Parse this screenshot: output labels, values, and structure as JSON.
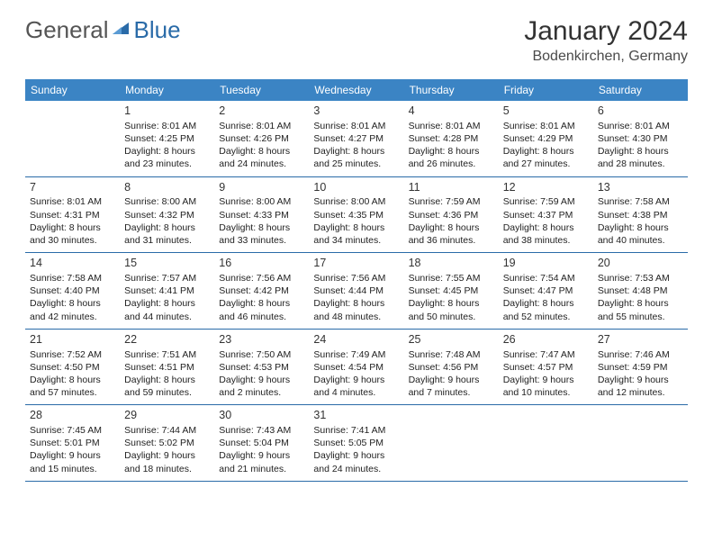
{
  "logo": {
    "text1": "General",
    "text2": "Blue",
    "color_text": "#555555",
    "color_icon": "#2a6ba8"
  },
  "header": {
    "month_title": "January 2024",
    "location": "Bodenkirchen, Germany",
    "title_fontsize": 30,
    "location_fontsize": 16
  },
  "calendar": {
    "header_bg": "#3b84c4",
    "header_fg": "#ffffff",
    "border_color": "#2a6ba8",
    "cell_fontsize": 10.5,
    "days": [
      "Sunday",
      "Monday",
      "Tuesday",
      "Wednesday",
      "Thursday",
      "Friday",
      "Saturday"
    ],
    "weeks": [
      [
        {
          "n": "",
          "s": "",
          "t": "",
          "d": ""
        },
        {
          "n": "1",
          "s": "Sunrise: 8:01 AM",
          "t": "Sunset: 4:25 PM",
          "d": "Daylight: 8 hours and 23 minutes."
        },
        {
          "n": "2",
          "s": "Sunrise: 8:01 AM",
          "t": "Sunset: 4:26 PM",
          "d": "Daylight: 8 hours and 24 minutes."
        },
        {
          "n": "3",
          "s": "Sunrise: 8:01 AM",
          "t": "Sunset: 4:27 PM",
          "d": "Daylight: 8 hours and 25 minutes."
        },
        {
          "n": "4",
          "s": "Sunrise: 8:01 AM",
          "t": "Sunset: 4:28 PM",
          "d": "Daylight: 8 hours and 26 minutes."
        },
        {
          "n": "5",
          "s": "Sunrise: 8:01 AM",
          "t": "Sunset: 4:29 PM",
          "d": "Daylight: 8 hours and 27 minutes."
        },
        {
          "n": "6",
          "s": "Sunrise: 8:01 AM",
          "t": "Sunset: 4:30 PM",
          "d": "Daylight: 8 hours and 28 minutes."
        }
      ],
      [
        {
          "n": "7",
          "s": "Sunrise: 8:01 AM",
          "t": "Sunset: 4:31 PM",
          "d": "Daylight: 8 hours and 30 minutes."
        },
        {
          "n": "8",
          "s": "Sunrise: 8:00 AM",
          "t": "Sunset: 4:32 PM",
          "d": "Daylight: 8 hours and 31 minutes."
        },
        {
          "n": "9",
          "s": "Sunrise: 8:00 AM",
          "t": "Sunset: 4:33 PM",
          "d": "Daylight: 8 hours and 33 minutes."
        },
        {
          "n": "10",
          "s": "Sunrise: 8:00 AM",
          "t": "Sunset: 4:35 PM",
          "d": "Daylight: 8 hours and 34 minutes."
        },
        {
          "n": "11",
          "s": "Sunrise: 7:59 AM",
          "t": "Sunset: 4:36 PM",
          "d": "Daylight: 8 hours and 36 minutes."
        },
        {
          "n": "12",
          "s": "Sunrise: 7:59 AM",
          "t": "Sunset: 4:37 PM",
          "d": "Daylight: 8 hours and 38 minutes."
        },
        {
          "n": "13",
          "s": "Sunrise: 7:58 AM",
          "t": "Sunset: 4:38 PM",
          "d": "Daylight: 8 hours and 40 minutes."
        }
      ],
      [
        {
          "n": "14",
          "s": "Sunrise: 7:58 AM",
          "t": "Sunset: 4:40 PM",
          "d": "Daylight: 8 hours and 42 minutes."
        },
        {
          "n": "15",
          "s": "Sunrise: 7:57 AM",
          "t": "Sunset: 4:41 PM",
          "d": "Daylight: 8 hours and 44 minutes."
        },
        {
          "n": "16",
          "s": "Sunrise: 7:56 AM",
          "t": "Sunset: 4:42 PM",
          "d": "Daylight: 8 hours and 46 minutes."
        },
        {
          "n": "17",
          "s": "Sunrise: 7:56 AM",
          "t": "Sunset: 4:44 PM",
          "d": "Daylight: 8 hours and 48 minutes."
        },
        {
          "n": "18",
          "s": "Sunrise: 7:55 AM",
          "t": "Sunset: 4:45 PM",
          "d": "Daylight: 8 hours and 50 minutes."
        },
        {
          "n": "19",
          "s": "Sunrise: 7:54 AM",
          "t": "Sunset: 4:47 PM",
          "d": "Daylight: 8 hours and 52 minutes."
        },
        {
          "n": "20",
          "s": "Sunrise: 7:53 AM",
          "t": "Sunset: 4:48 PM",
          "d": "Daylight: 8 hours and 55 minutes."
        }
      ],
      [
        {
          "n": "21",
          "s": "Sunrise: 7:52 AM",
          "t": "Sunset: 4:50 PM",
          "d": "Daylight: 8 hours and 57 minutes."
        },
        {
          "n": "22",
          "s": "Sunrise: 7:51 AM",
          "t": "Sunset: 4:51 PM",
          "d": "Daylight: 8 hours and 59 minutes."
        },
        {
          "n": "23",
          "s": "Sunrise: 7:50 AM",
          "t": "Sunset: 4:53 PM",
          "d": "Daylight: 9 hours and 2 minutes."
        },
        {
          "n": "24",
          "s": "Sunrise: 7:49 AM",
          "t": "Sunset: 4:54 PM",
          "d": "Daylight: 9 hours and 4 minutes."
        },
        {
          "n": "25",
          "s": "Sunrise: 7:48 AM",
          "t": "Sunset: 4:56 PM",
          "d": "Daylight: 9 hours and 7 minutes."
        },
        {
          "n": "26",
          "s": "Sunrise: 7:47 AM",
          "t": "Sunset: 4:57 PM",
          "d": "Daylight: 9 hours and 10 minutes."
        },
        {
          "n": "27",
          "s": "Sunrise: 7:46 AM",
          "t": "Sunset: 4:59 PM",
          "d": "Daylight: 9 hours and 12 minutes."
        }
      ],
      [
        {
          "n": "28",
          "s": "Sunrise: 7:45 AM",
          "t": "Sunset: 5:01 PM",
          "d": "Daylight: 9 hours and 15 minutes."
        },
        {
          "n": "29",
          "s": "Sunrise: 7:44 AM",
          "t": "Sunset: 5:02 PM",
          "d": "Daylight: 9 hours and 18 minutes."
        },
        {
          "n": "30",
          "s": "Sunrise: 7:43 AM",
          "t": "Sunset: 5:04 PM",
          "d": "Daylight: 9 hours and 21 minutes."
        },
        {
          "n": "31",
          "s": "Sunrise: 7:41 AM",
          "t": "Sunset: 5:05 PM",
          "d": "Daylight: 9 hours and 24 minutes."
        },
        {
          "n": "",
          "s": "",
          "t": "",
          "d": ""
        },
        {
          "n": "",
          "s": "",
          "t": "",
          "d": ""
        },
        {
          "n": "",
          "s": "",
          "t": "",
          "d": ""
        }
      ]
    ]
  }
}
